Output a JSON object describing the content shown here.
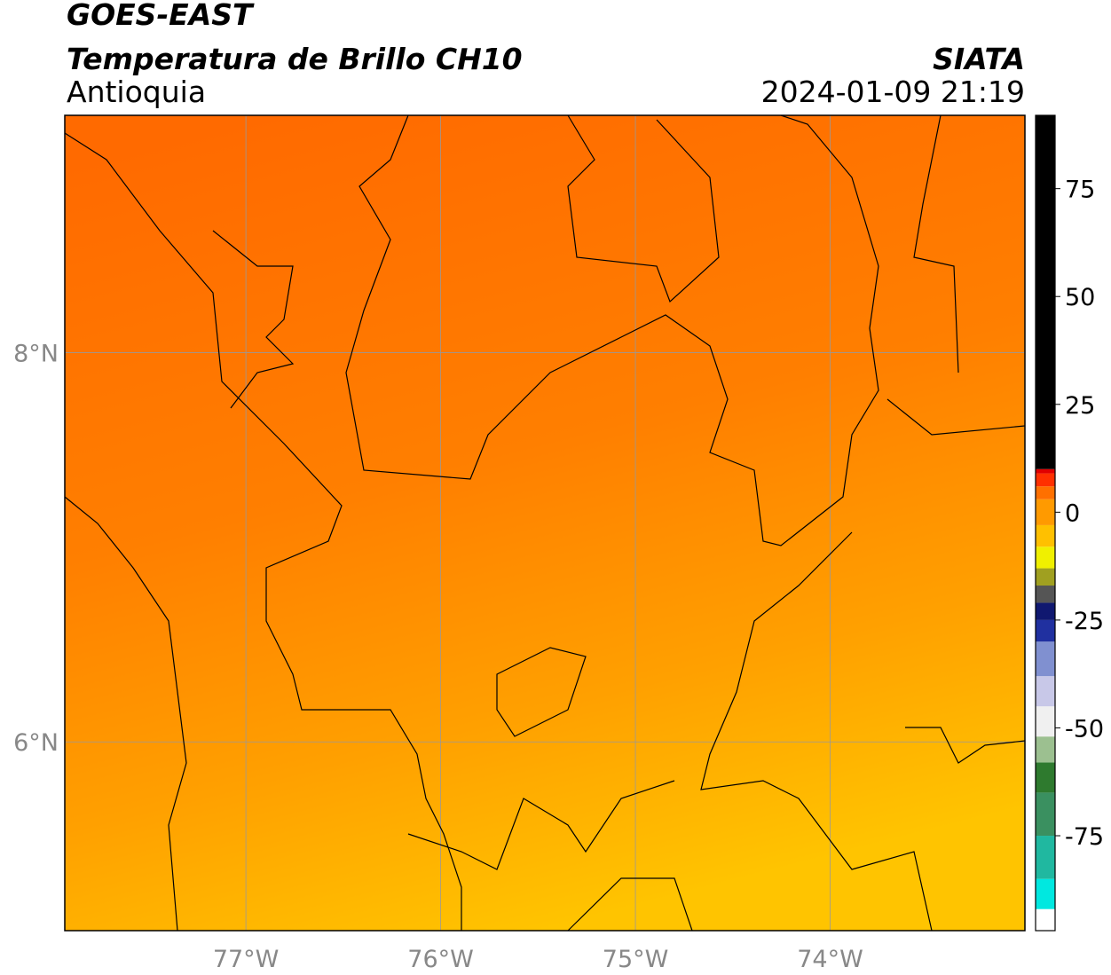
{
  "chart_data": {
    "type": "raster-map",
    "title": "GOES-EAST",
    "subtitle": "Temperatura de Brillo CH10",
    "region": "Antioquia",
    "source": "SIATA",
    "timestamp": "2024-01-09 21:19",
    "xlim": [
      -77.93,
      -73
    ],
    "ylim": [
      5.03,
      9.22
    ],
    "xticks": [
      {
        "value": -77,
        "label": "77°W"
      },
      {
        "value": -76,
        "label": "76°W"
      },
      {
        "value": -75,
        "label": "75°W"
      },
      {
        "value": -74,
        "label": "74°W"
      }
    ],
    "yticks": [
      {
        "value": 6,
        "label": "6°N"
      },
      {
        "value": 8,
        "label": "8°N"
      }
    ],
    "grid": true,
    "clim": [
      -97,
      92
    ],
    "cticks": [
      75,
      50,
      25,
      0,
      -25,
      -50,
      -75
    ],
    "colormap": [
      {
        "value": -97,
        "color": "#ffffff"
      },
      {
        "value": -92,
        "color": "#00e8e0"
      },
      {
        "value": -85,
        "color": "#20b8a0"
      },
      {
        "value": -75,
        "color": "#3a9060"
      },
      {
        "value": -65,
        "color": "#2e7a2e"
      },
      {
        "value": -58,
        "color": "#9cc090"
      },
      {
        "value": -52,
        "color": "#f0f0f0"
      },
      {
        "value": -45,
        "color": "#c8c8e8"
      },
      {
        "value": -38,
        "color": "#8090d0"
      },
      {
        "value": -30,
        "color": "#2030a0"
      },
      {
        "value": -25,
        "color": "#101870"
      },
      {
        "value": -21,
        "color": "#555555"
      },
      {
        "value": -17,
        "color": "#a0a020"
      },
      {
        "value": -13,
        "color": "#f0f000"
      },
      {
        "value": -8,
        "color": "#ffc000"
      },
      {
        "value": -3,
        "color": "#ff9a00"
      },
      {
        "value": 3,
        "color": "#ff7000"
      },
      {
        "value": 6,
        "color": "#ff3000"
      },
      {
        "value": 9,
        "color": "#e00000"
      },
      {
        "value": 10,
        "color": "#000000"
      }
    ]
  }
}
